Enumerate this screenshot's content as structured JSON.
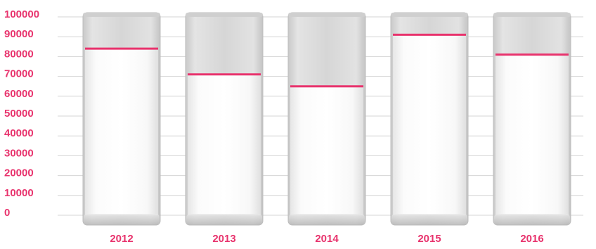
{
  "chart_data": {
    "type": "bar",
    "categories": [
      "2012",
      "2013",
      "2014",
      "2015",
      "2016"
    ],
    "values": [
      84000,
      71000,
      65000,
      91000,
      81000
    ],
    "color": "#e8336d",
    "ylim": [
      0,
      100000
    ],
    "yticks": [
      0,
      10000,
      20000,
      30000,
      40000,
      50000,
      60000,
      70000,
      80000,
      90000,
      100000
    ],
    "grid": true
  }
}
